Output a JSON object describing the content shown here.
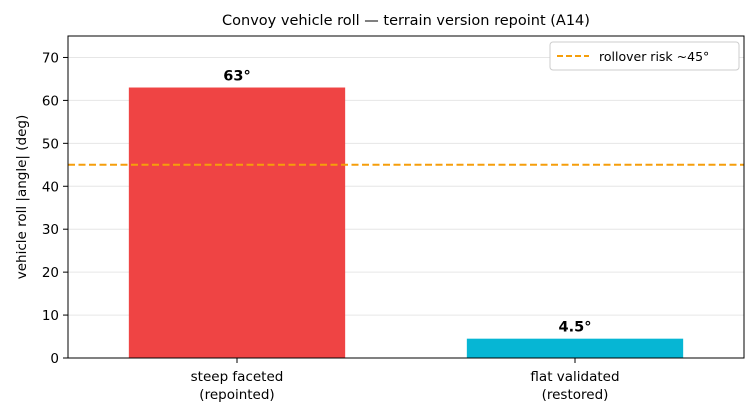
{
  "chart_data": {
    "type": "bar",
    "title": "Convoy vehicle roll — terrain version repoint (A14)",
    "ylabel": "vehicle roll |angle| (deg)",
    "xlabel": "",
    "categories": [
      [
        "steep faceted",
        "(repointed)"
      ],
      [
        "flat validated",
        "(restored)"
      ]
    ],
    "values": [
      63,
      4.5
    ],
    "data_labels": [
      "63°",
      "4.5°"
    ],
    "bar_colors": [
      "#ef4444",
      "#06b6d4"
    ],
    "ylim": [
      0,
      75
    ],
    "yticks": [
      0,
      10,
      20,
      30,
      40,
      50,
      60,
      70
    ],
    "grid": "horizontal",
    "reference_line": {
      "value": 45,
      "label": "rollover risk ~45°",
      "color": "#f59e0b",
      "style": "dashed"
    },
    "legend_position": "top-right"
  }
}
